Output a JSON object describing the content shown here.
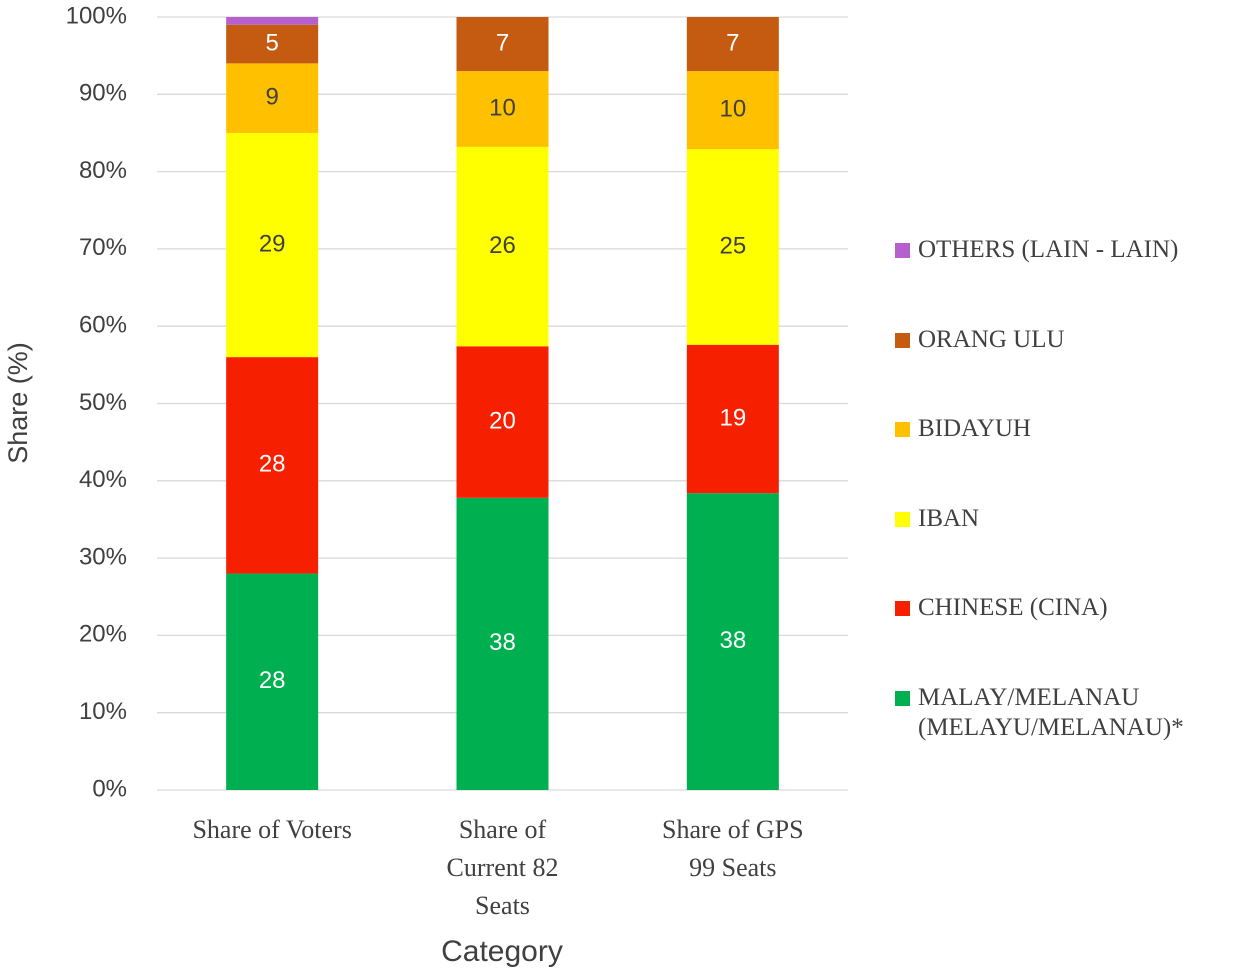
{
  "chart_data": {
    "type": "stacked_bar",
    "y_label": "Share (%)",
    "x_label": "Category",
    "categories": [
      "Share of Voters",
      "Share of Current 82 Seats",
      "Share of GPS 99 Seats"
    ],
    "series": [
      {
        "name": "MALAY/MELANAU (MELAYU/MELANAU)*",
        "color": "#00b050",
        "values": [
          28,
          37.8,
          38.4
        ],
        "value_labels": [
          "28",
          "38",
          "38"
        ]
      },
      {
        "name": "CHINESE (CINA)",
        "color": "#f61f00",
        "values": [
          28,
          19.6,
          19.2
        ],
        "value_labels": [
          "28",
          "20",
          "19"
        ]
      },
      {
        "name": "IBAN",
        "color": "#ffff00",
        "values": [
          29,
          25.8,
          25.3
        ],
        "value_labels": [
          "29",
          "26",
          "25"
        ]
      },
      {
        "name": "BIDAYUH",
        "color": "#ffc000",
        "values": [
          9,
          9.8,
          10.1
        ],
        "value_labels": [
          "9",
          "10",
          "10"
        ]
      },
      {
        "name": "ORANG ULU",
        "color": "#c55a11",
        "values": [
          5,
          7.0,
          7.0
        ],
        "value_labels": [
          "5",
          "7",
          "7"
        ]
      },
      {
        "name": "OTHERS (LAIN - LAIN)",
        "color": "#b660cd",
        "values": [
          1,
          0,
          0
        ]
      }
    ],
    "ylim": [
      0,
      100
    ],
    "yticks": [
      {
        "value": 0,
        "label": "0%"
      },
      {
        "value": 10,
        "label": "10%"
      },
      {
        "value": 20,
        "label": "20%"
      },
      {
        "value": 30,
        "label": "30%"
      },
      {
        "value": 40,
        "label": "40%"
      },
      {
        "value": 50,
        "label": "50%"
      },
      {
        "value": 60,
        "label": "60%"
      },
      {
        "value": 70,
        "label": "70%"
      },
      {
        "value": 80,
        "label": "80%"
      },
      {
        "value": 90,
        "label": "90%"
      },
      {
        "value": 100,
        "label": "100%"
      }
    ],
    "grid": true,
    "legend": "right"
  }
}
